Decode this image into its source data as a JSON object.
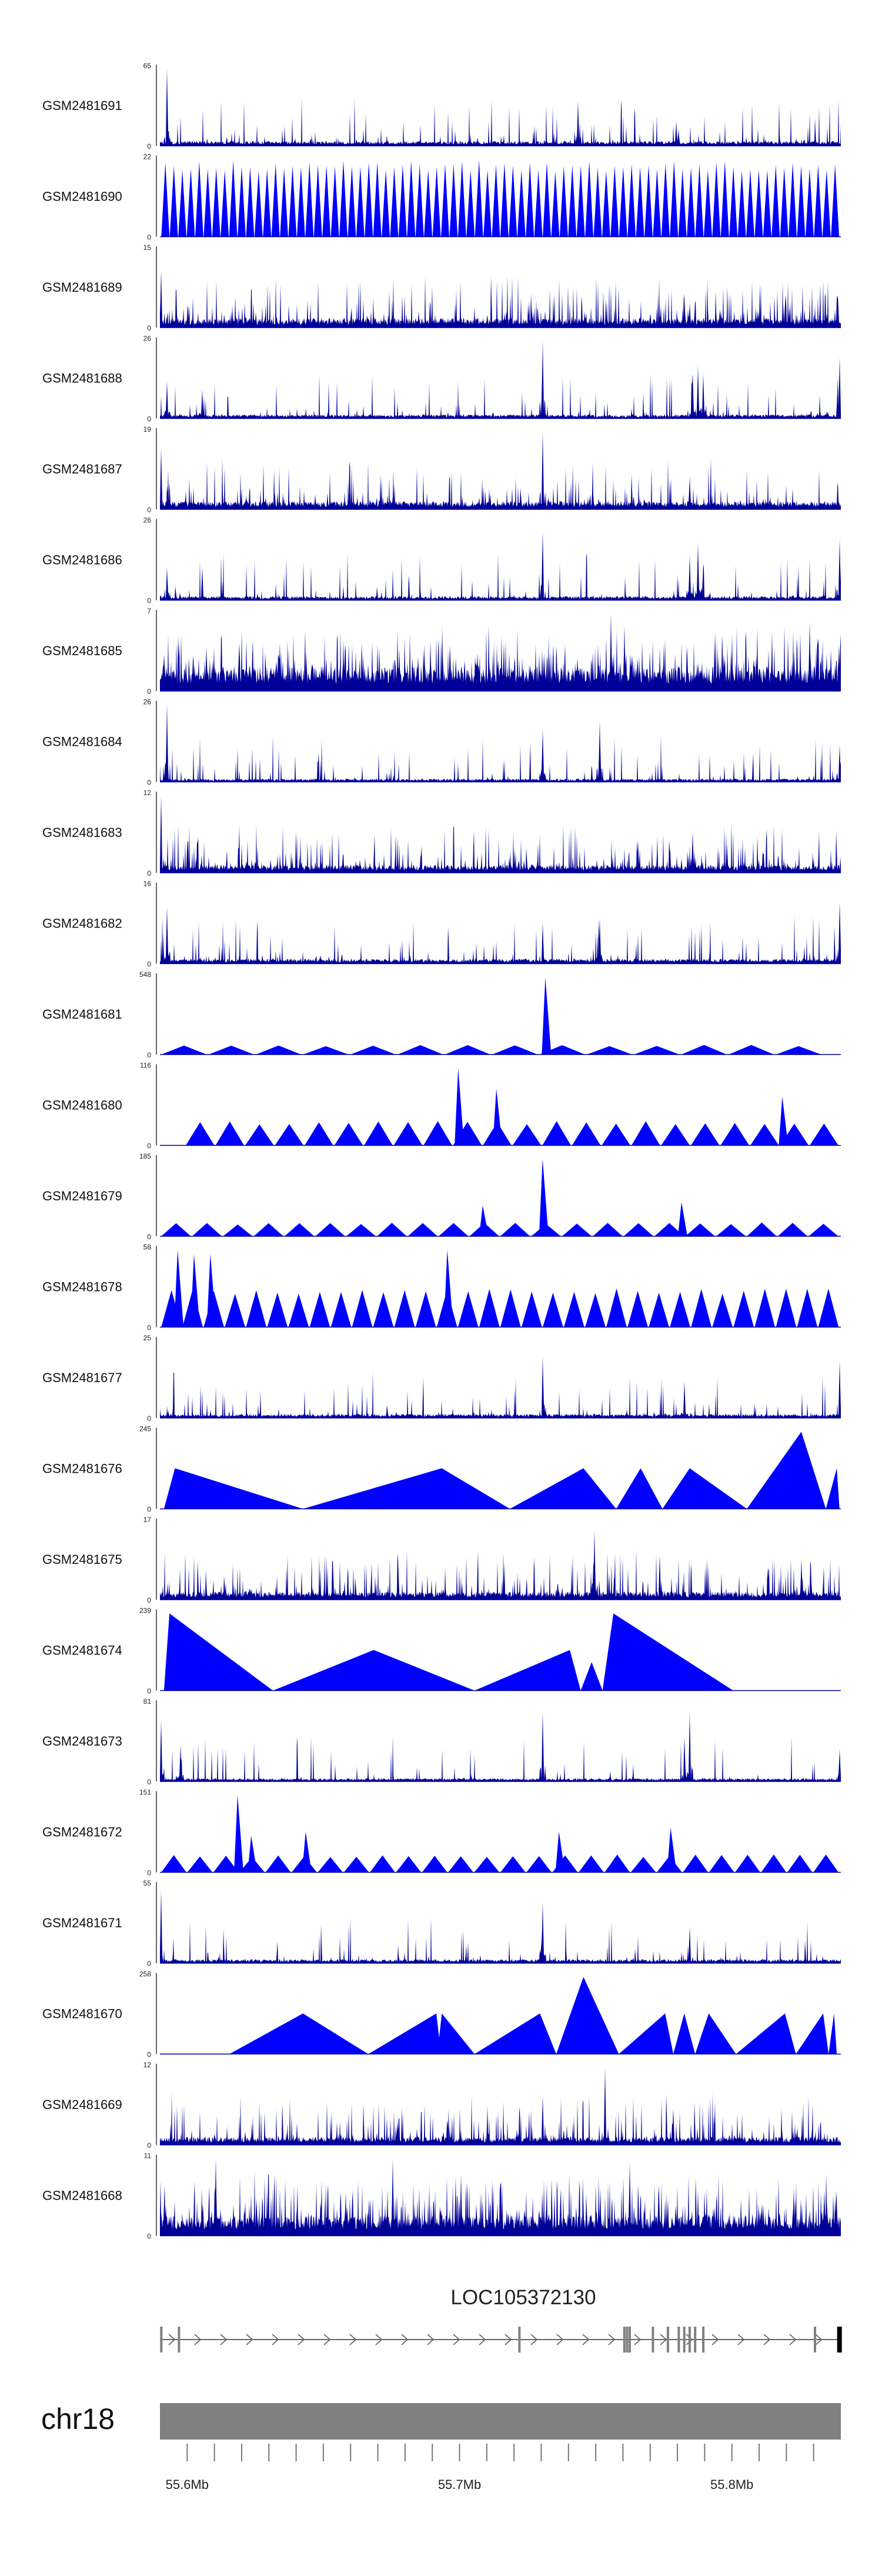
{
  "chart_data": {
    "type": "area",
    "title": "",
    "xlabel": "",
    "ylabel": "",
    "genome": {
      "chromosome": "chr18",
      "xlim_mb": [
        55.59,
        55.84
      ],
      "ticks_mb": [
        55.6,
        55.61,
        55.62,
        55.63,
        55.64,
        55.65,
        55.66,
        55.67,
        55.68,
        55.69,
        55.7,
        55.71,
        55.72,
        55.73,
        55.74,
        55.75,
        55.76,
        55.77,
        55.78,
        55.79,
        55.8,
        55.81,
        55.82,
        55.83
      ],
      "tick_labels": [
        {
          "pos_mb": 55.6,
          "label": "55.6Mb"
        },
        {
          "pos_mb": 55.7,
          "label": "55.7Mb"
        },
        {
          "pos_mb": 55.8,
          "label": "55.8Mb"
        }
      ]
    },
    "gene": {
      "label": "LOC105372130",
      "start_mb": 55.59,
      "end_mb": 55.84,
      "strand": "+",
      "exons_mb": [
        55.5905,
        55.597,
        55.722,
        55.7605,
        55.7615,
        55.7625,
        55.771,
        55.7765,
        55.7805,
        55.7825,
        55.7845,
        55.7865,
        55.7895,
        55.8305,
        55.8395
      ]
    },
    "series": [
      {
        "name": "GSM2481691",
        "ymax": 65,
        "style": "dense",
        "baseline": 0.06,
        "noise": 0.12,
        "peaks": [
          [
            55.5925,
            0.95
          ],
          [
            55.7435,
            0.55
          ],
          [
            55.7795,
            0.3
          ],
          [
            55.7805,
            0.2
          ]
        ]
      },
      {
        "name": "GSM2481690",
        "ymax": 22,
        "style": "tri",
        "seg_start_mb": 55.5905,
        "seg_end_mb": 55.8395,
        "seg_count": 80,
        "seg_height": 0.95
      },
      {
        "name": "GSM2481689",
        "ymax": 15,
        "style": "dense",
        "baseline": 0.12,
        "noise": 0.28,
        "peaks": [
          [
            55.5905,
            0.7
          ],
          [
            55.7825,
            0.35
          ],
          [
            55.7845,
            0.3
          ],
          [
            55.7865,
            0.3
          ]
        ]
      },
      {
        "name": "GSM2481688",
        "ymax": 26,
        "style": "dense",
        "baseline": 0.05,
        "noise": 0.12,
        "peaks": [
          [
            55.5925,
            0.45
          ],
          [
            55.6055,
            0.35
          ],
          [
            55.7305,
            0.95
          ],
          [
            55.7855,
            0.55
          ],
          [
            55.7875,
            0.65
          ],
          [
            55.7895,
            0.55
          ],
          [
            55.8395,
            0.75
          ]
        ]
      },
      {
        "name": "GSM2481687",
        "ymax": 19,
        "style": "dense",
        "baseline": 0.1,
        "noise": 0.22,
        "peaks": [
          [
            55.5905,
            0.75
          ],
          [
            55.7305,
            0.95
          ],
          [
            55.7845,
            0.4
          ]
        ]
      },
      {
        "name": "GSM2481686",
        "ymax": 26,
        "style": "dense",
        "baseline": 0.05,
        "noise": 0.12,
        "peaks": [
          [
            55.5925,
            0.4
          ],
          [
            55.6055,
            0.4
          ],
          [
            55.7305,
            0.85
          ],
          [
            55.7845,
            0.55
          ],
          [
            55.7875,
            0.7
          ],
          [
            55.7895,
            0.45
          ],
          [
            55.8395,
            0.75
          ]
        ]
      },
      {
        "name": "GSM2481685",
        "ymax": 7,
        "style": "dense",
        "baseline": 0.3,
        "noise": 0.45,
        "peaks": [
          [
            55.7555,
            0.95
          ],
          [
            55.7605,
            0.8
          ],
          [
            55.8285,
            0.85
          ]
        ]
      },
      {
        "name": "GSM2481684",
        "ymax": 26,
        "style": "dense",
        "baseline": 0.04,
        "noise": 0.1,
        "peaks": [
          [
            55.5925,
            0.95
          ],
          [
            55.7305,
            0.65
          ],
          [
            55.7515,
            0.75
          ],
          [
            55.8395,
            0.45
          ]
        ]
      },
      {
        "name": "GSM2481683",
        "ymax": 12,
        "style": "dense",
        "baseline": 0.1,
        "noise": 0.28,
        "peaks": [
          [
            55.5905,
            0.95
          ],
          [
            55.7655,
            0.4
          ],
          [
            55.7855,
            0.5
          ]
        ]
      },
      {
        "name": "GSM2481682",
        "ymax": 16,
        "style": "dense",
        "baseline": 0.06,
        "noise": 0.15,
        "peaks": [
          [
            55.5925,
            0.7
          ],
          [
            55.7305,
            0.5
          ],
          [
            55.7515,
            0.55
          ],
          [
            55.8395,
            0.75
          ]
        ]
      },
      {
        "name": "GSM2481681",
        "ymax": 548,
        "style": "tri",
        "seg_start_mb": 55.5905,
        "seg_end_mb": 55.8335,
        "seg_count": 14,
        "seg_height": 0.12,
        "peaks": [
          [
            55.7315,
            0.95
          ]
        ]
      },
      {
        "name": "GSM2481680",
        "ymax": 116,
        "style": "tri",
        "seg_start_mb": 55.5995,
        "seg_end_mb": 55.8395,
        "seg_count": 22,
        "seg_height": 0.3,
        "peaks": [
          [
            55.6995,
            0.95
          ],
          [
            55.7135,
            0.7
          ],
          [
            55.8185,
            0.6
          ]
        ]
      },
      {
        "name": "GSM2481679",
        "ymax": 185,
        "style": "tri",
        "seg_start_mb": 55.5905,
        "seg_end_mb": 55.8395,
        "seg_count": 22,
        "seg_height": 0.17,
        "peaks": [
          [
            55.7085,
            0.38
          ],
          [
            55.7305,
            0.95
          ],
          [
            55.7815,
            0.42
          ]
        ]
      },
      {
        "name": "GSM2481678",
        "ymax": 58,
        "style": "tri",
        "seg_start_mb": 55.5905,
        "seg_end_mb": 55.8395,
        "seg_count": 32,
        "seg_height": 0.48,
        "peaks": [
          [
            55.5965,
            0.95
          ],
          [
            55.6025,
            0.9
          ],
          [
            55.6085,
            0.9
          ],
          [
            55.6955,
            0.95
          ]
        ]
      },
      {
        "name": "GSM2481677",
        "ymax": 25,
        "style": "dense",
        "baseline": 0.05,
        "noise": 0.12,
        "peaks": [
          [
            55.7305,
            0.75
          ],
          [
            55.7825,
            0.45
          ],
          [
            55.8395,
            0.7
          ]
        ]
      },
      {
        "name": "GSM2481676",
        "ymax": 245,
        "style": "poly",
        "points": [
          [
            55.5915,
            0
          ],
          [
            55.5955,
            0.5
          ],
          [
            55.6425,
            0
          ],
          [
            55.6935,
            0.5
          ],
          [
            55.7185,
            0
          ],
          [
            55.7455,
            0.5
          ],
          [
            55.7575,
            0
          ],
          [
            55.7665,
            0.5
          ],
          [
            55.7745,
            0
          ],
          [
            55.7845,
            0.5
          ],
          [
            55.8055,
            0
          ],
          [
            55.8255,
            0.95
          ],
          [
            55.8345,
            0
          ],
          [
            55.8385,
            0.5
          ],
          [
            55.8395,
            0
          ]
        ]
      },
      {
        "name": "GSM2481675",
        "ymax": 17,
        "style": "dense",
        "baseline": 0.1,
        "noise": 0.25,
        "peaks": [
          [
            55.7495,
            0.85
          ],
          [
            55.7735,
            0.55
          ],
          [
            55.8255,
            0.5
          ]
        ]
      },
      {
        "name": "GSM2481674",
        "ymax": 239,
        "style": "poly",
        "points": [
          [
            55.5915,
            0
          ],
          [
            55.5935,
            0.95
          ],
          [
            55.6315,
            0
          ],
          [
            55.6685,
            0.5
          ],
          [
            55.7055,
            0
          ],
          [
            55.7405,
            0.5
          ],
          [
            55.7445,
            0
          ],
          [
            55.7485,
            0.35
          ],
          [
            55.7525,
            0
          ],
          [
            55.7565,
            0.95
          ],
          [
            55.8005,
            0
          ]
        ]
      },
      {
        "name": "GSM2481673",
        "ymax": 81,
        "style": "dense",
        "baseline": 0.04,
        "noise": 0.08,
        "peaks": [
          [
            55.5905,
            0.75
          ],
          [
            55.5975,
            0.45
          ],
          [
            55.7305,
            0.85
          ],
          [
            55.7825,
            0.55
          ],
          [
            55.7845,
            0.85
          ],
          [
            55.8395,
            0.4
          ]
        ]
      },
      {
        "name": "GSM2481672",
        "ymax": 151,
        "style": "tri",
        "seg_start_mb": 55.5905,
        "seg_end_mb": 55.8395,
        "seg_count": 26,
        "seg_height": 0.22,
        "peaks": [
          [
            55.6185,
            0.95
          ],
          [
            55.6235,
            0.45
          ],
          [
            55.6435,
            0.5
          ],
          [
            55.7365,
            0.5
          ],
          [
            55.7775,
            0.55
          ]
        ]
      },
      {
        "name": "GSM2481671",
        "ymax": 55,
        "style": "dense",
        "baseline": 0.05,
        "noise": 0.1,
        "peaks": [
          [
            55.5905,
            0.9
          ],
          [
            55.7305,
            0.75
          ],
          [
            55.7845,
            0.45
          ]
        ]
      },
      {
        "name": "GSM2481670",
        "ymax": 258,
        "style": "poly",
        "points": [
          [
            55.6155,
            0
          ],
          [
            55.6425,
            0.5
          ],
          [
            55.6665,
            0
          ],
          [
            55.6915,
            0.5
          ],
          [
            55.6925,
            0.2
          ],
          [
            55.6935,
            0.5
          ],
          [
            55.7055,
            0
          ],
          [
            55.7295,
            0.5
          ],
          [
            55.7355,
            0
          ],
          [
            55.7455,
            0.95
          ],
          [
            55.7585,
            0
          ],
          [
            55.7755,
            0.5
          ],
          [
            55.7785,
            0
          ],
          [
            55.7825,
            0.5
          ],
          [
            55.7865,
            0
          ],
          [
            55.7915,
            0.5
          ],
          [
            55.8015,
            0
          ],
          [
            55.8195,
            0.5
          ],
          [
            55.8235,
            0
          ],
          [
            55.8335,
            0.5
          ],
          [
            55.8355,
            0
          ],
          [
            55.8375,
            0.5
          ],
          [
            55.8385,
            0
          ]
        ]
      },
      {
        "name": "GSM2481669",
        "ymax": 12,
        "style": "dense",
        "baseline": 0.1,
        "noise": 0.25,
        "peaks": [
          [
            55.7305,
            0.6
          ],
          [
            55.7535,
            0.95
          ],
          [
            55.7785,
            0.45
          ]
        ]
      },
      {
        "name": "GSM2481668",
        "ymax": 11,
        "style": "dense",
        "baseline": 0.25,
        "noise": 0.45,
        "peaks": [
          [
            55.6105,
            0.95
          ],
          [
            55.6755,
            0.95
          ],
          [
            55.7005,
            0.75
          ],
          [
            55.7625,
            0.9
          ]
        ]
      }
    ]
  }
}
